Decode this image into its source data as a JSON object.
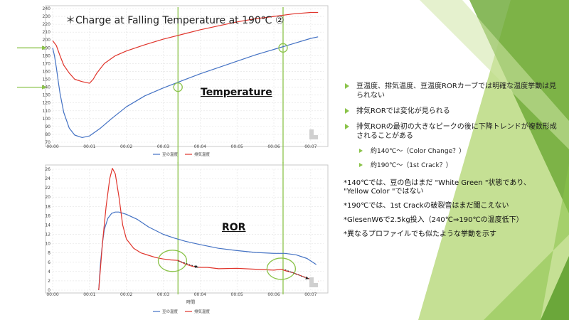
{
  "slide": {
    "title": "＊Charge at Falling Temperature at 190℃ ②",
    "label_temperature": "Temperature",
    "label_ror": "ROR",
    "accent_color": "#8bc34a",
    "bullets": [
      {
        "level": 1,
        "text": "豆温度、排気温度、豆温度RORカーブでは明確な温度挙動は見られない"
      },
      {
        "level": 1,
        "text": "排気RORでは変化が見られる"
      },
      {
        "level": 1,
        "text": "排気RORの最初の大きなピークの後に下降トレンドが複数形成されることがある"
      },
      {
        "level": 2,
        "text": "約140℃～（Color Change？）"
      },
      {
        "level": 2,
        "text": "約190℃～（1st Crack？）"
      }
    ],
    "notes": [
      "*140℃では、豆の色はまだ \"White Green \"状態であり、 \"Yellow Color \"ではない",
      "*190℃では、1st Crackの破裂音はまだ聞こえない",
      "*GlesenW6で2.5kg投入（240℃⇒190℃の温度低下）",
      "*異なるプロファイルでも似たような挙動を示す"
    ]
  },
  "chart_data": [
    {
      "type": "line",
      "x_ticks": [
        "00:00",
        "00:01",
        "00:02",
        "00:03",
        "00:04",
        "00:05",
        "00:06",
        "00:07"
      ],
      "xlabel": "",
      "ylim": [
        70,
        240
      ],
      "y_ticks": [
        70,
        80,
        90,
        100,
        110,
        120,
        130,
        140,
        150,
        160,
        170,
        180,
        190,
        200,
        210,
        220,
        230,
        240
      ],
      "grid": true,
      "legend_position": "bottom",
      "series": [
        {
          "name": "豆の温度",
          "color": "#4472c4",
          "x": [
            0,
            0.05,
            0.1,
            0.15,
            0.2,
            0.3,
            0.45,
            0.6,
            0.8,
            1.0,
            1.3,
            1.6,
            2.0,
            2.5,
            3.0,
            3.5,
            4.0,
            4.5,
            5.0,
            5.5,
            6.0,
            6.5,
            7.0,
            7.2
          ],
          "y": [
            190,
            180,
            165,
            148,
            132,
            108,
            88,
            79,
            76,
            78,
            88,
            100,
            115,
            129,
            139,
            148,
            157,
            165,
            173,
            181,
            188,
            195,
            202,
            204
          ]
        },
        {
          "name": "排気温度",
          "color": "#e0342b",
          "x": [
            0,
            0.1,
            0.2,
            0.3,
            0.45,
            0.6,
            0.8,
            1.0,
            1.1,
            1.2,
            1.4,
            1.7,
            2.0,
            2.5,
            3.0,
            3.5,
            4.0,
            4.5,
            5.0,
            5.5,
            6.0,
            6.5,
            7.0,
            7.2
          ],
          "y": [
            199,
            193,
            180,
            168,
            158,
            150,
            147,
            145,
            150,
            158,
            170,
            180,
            186,
            194,
            201,
            207,
            213,
            218,
            223,
            227,
            230,
            233,
            235,
            235
          ]
        }
      ],
      "markers": [
        {
          "x": 3.4,
          "y": 140
        },
        {
          "x": 6.25,
          "y": 190
        }
      ],
      "vlines": [
        3.4,
        6.25
      ],
      "arrows_at_y": [
        190,
        140
      ]
    },
    {
      "type": "line",
      "x_ticks": [
        "00:00",
        "00:01",
        "00:02",
        "00:03",
        "00:04",
        "00:05",
        "00:06",
        "00:07"
      ],
      "xlabel": "時間",
      "ylim": [
        0,
        26
      ],
      "y_ticks": [
        0,
        2,
        4,
        6,
        8,
        10,
        12,
        14,
        16,
        18,
        20,
        22,
        24,
        26
      ],
      "grid": true,
      "legend_position": "bottom",
      "series": [
        {
          "name": "豆の温度",
          "color": "#4472c4",
          "x": [
            1.25,
            1.3,
            1.35,
            1.4,
            1.5,
            1.6,
            1.7,
            1.8,
            2.0,
            2.3,
            2.6,
            3.0,
            3.3,
            3.6,
            4.0,
            4.5,
            5.0,
            5.5,
            6.0,
            6.3,
            6.6,
            6.9,
            7.15
          ],
          "y": [
            0,
            6,
            10,
            13,
            15.5,
            16.5,
            16.8,
            16.8,
            16.3,
            15.2,
            13.6,
            12,
            11.2,
            10.5,
            9.8,
            9,
            8.5,
            8.1,
            7.9,
            7.9,
            7.6,
            6.8,
            5.5
          ]
        },
        {
          "name": "排気温度",
          "color": "#e0342b",
          "x": [
            1.25,
            1.35,
            1.45,
            1.55,
            1.62,
            1.7,
            1.8,
            1.9,
            2.0,
            2.2,
            2.4,
            2.6,
            2.8,
            3.0,
            3.2,
            3.4,
            3.6,
            3.8,
            4.0,
            4.2,
            4.5,
            5.0,
            5.5,
            6.0,
            6.2,
            6.3,
            6.5,
            6.7,
            6.9,
            7.1,
            7.2
          ],
          "y": [
            0,
            10,
            18,
            24,
            26.2,
            25,
            20,
            14,
            11,
            9,
            8,
            7.5,
            7,
            6.7,
            6.5,
            6.4,
            5.6,
            5.1,
            4.9,
            4.9,
            4.6,
            4.7,
            4.5,
            4.3,
            4.5,
            4.2,
            3.8,
            3.2,
            2.6,
            2.1,
            1.9
          ]
        }
      ],
      "ellipses": [
        {
          "x": 3.25,
          "y": 6.3
        },
        {
          "x": 6.2,
          "y": 4.6
        }
      ],
      "dotted_arrows": [
        {
          "from": [
            3.4,
            6.3
          ],
          "to": [
            3.95,
            4.9
          ]
        },
        {
          "from": [
            6.3,
            4.4
          ],
          "to": [
            6.95,
            2.4
          ]
        }
      ],
      "vlines": [
        3.4,
        6.25
      ]
    }
  ]
}
